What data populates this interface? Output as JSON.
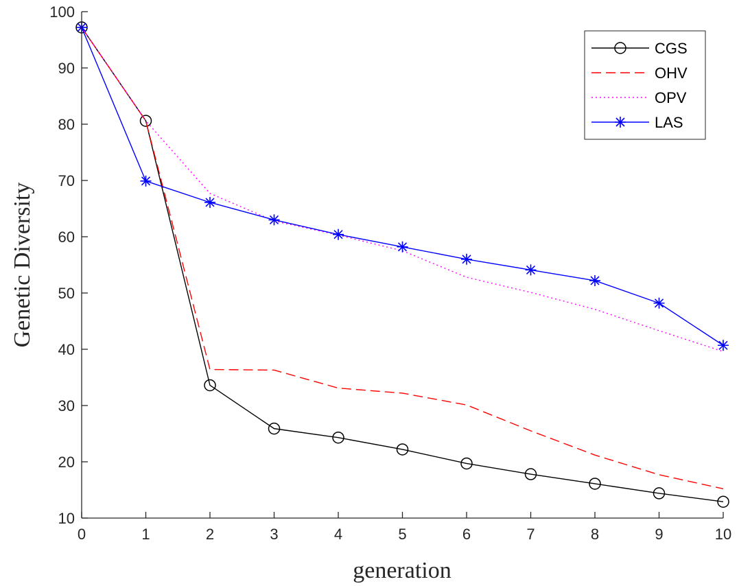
{
  "chart_data": {
    "type": "line",
    "xlabel": "generation",
    "ylabel": "Genetic Diversity",
    "xlim": [
      0,
      10
    ],
    "ylim": [
      10,
      100
    ],
    "xticks": [
      "0",
      "1",
      "2",
      "3",
      "4",
      "5",
      "6",
      "7",
      "8",
      "9",
      "10"
    ],
    "yticks": [
      "10",
      "20",
      "30",
      "40",
      "50",
      "60",
      "70",
      "80",
      "90",
      "100"
    ],
    "grid": false,
    "legend_position": "top-right",
    "x": [
      0,
      1,
      2,
      3,
      4,
      5,
      6,
      7,
      8,
      9,
      10
    ],
    "series": [
      {
        "name": "CGS",
        "color": "#000000",
        "style": "solid",
        "marker": "circle",
        "values": [
          97.2,
          80.6,
          33.6,
          25.9,
          24.3,
          22.2,
          19.7,
          17.8,
          16.1,
          14.4,
          12.9
        ]
      },
      {
        "name": "OHV",
        "color": "#ff0000",
        "style": "dashed",
        "marker": "none",
        "values": [
          97.2,
          80.6,
          36.4,
          36.3,
          33.1,
          32.2,
          30.1,
          25.5,
          21.2,
          17.7,
          15.2
        ]
      },
      {
        "name": "OPV",
        "color": "#ff00ff",
        "style": "dotted",
        "marker": "none",
        "values": [
          97.2,
          80.6,
          67.7,
          62.8,
          60.3,
          57.5,
          52.8,
          50.1,
          47.1,
          43.3,
          39.6
        ]
      },
      {
        "name": "LAS",
        "color": "#0000ff",
        "style": "solid",
        "marker": "star",
        "values": [
          97.2,
          69.9,
          66.1,
          63.0,
          60.4,
          58.2,
          56.0,
          54.1,
          52.2,
          48.2,
          40.7
        ]
      }
    ]
  }
}
